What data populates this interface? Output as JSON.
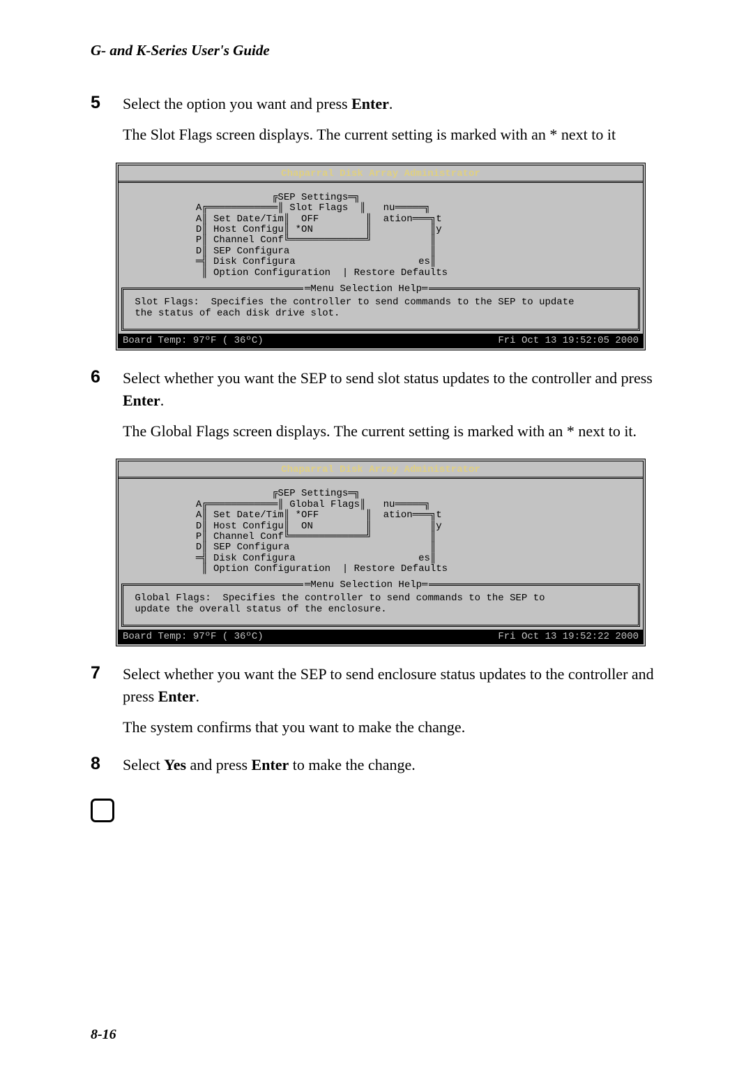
{
  "header": "G- and K-Series User's Guide",
  "page_num": "8-16",
  "steps": {
    "s5": {
      "num": "5",
      "line1a": "Select the option you want and press ",
      "line1b": "Enter",
      "line1c": ".",
      "line2": "The Slot Flags screen displays. The current setting is marked with an * next to it"
    },
    "s6": {
      "num": "6",
      "line1a": "Select whether you want the SEP to send slot status updates to the controller and press ",
      "line1b": "Enter",
      "line1c": ".",
      "line2": "The Global Flags screen displays. The current setting is marked with an * next to it."
    },
    "s7": {
      "num": "7",
      "line1a": "Select whether you want the SEP to send enclosure status updates to the controller and press ",
      "line1b": "Enter",
      "line1c": ".",
      "line2": "The system confirms that you want to make the change."
    },
    "s8": {
      "num": "8",
      "line1a": "Select ",
      "line1b": "Yes",
      "line1c": " and press ",
      "line1d": "Enter",
      "line1e": " to make the change."
    }
  },
  "term1": {
    "title": "Chaparral Disk Array Administrator",
    "body": "                         ╔SEP Settings═╗\n            A╔════════════║ Slot Flags  ║   nu═════╗\n            A║ Set Date/Tim║  OFF        ║  ation═══╗t\n            D║ Host Configu║ *ON         ║          ║y\n            P║ Channel Conf╚═════════════╝          ║\n            D║ SEP Configura                        ║\n            ═╣ Disk Configura                     es║\n             ║ Option Configuration  | Restore Defaults",
    "help_title": "═Menu Selection Help═",
    "help_body": " Slot Flags:  Specifies the controller to send commands to the SEP to update\n the status of each disk drive slot.",
    "status_left": "Board Temp:  97ºF ( 36ºC)",
    "status_right": "Fri Oct 13 19:52:05 2000"
  },
  "term2": {
    "title": "Chaparral Disk Array Administrator",
    "body": "                         ╔SEP Settings═╗\n            A╔════════════║ Global Flags║   nu═════╗\n            A║ Set Date/Tim║ *OFF        ║  ation═══╗t\n            D║ Host Configu║  ON         ║          ║y\n            P║ Channel Conf╚═════════════╝          ║\n            D║ SEP Configura                        ║\n            ═╣ Disk Configura                     es║\n             ║ Option Configuration  | Restore Defaults",
    "help_title": "═Menu Selection Help═",
    "help_body": " Global Flags:  Specifies the controller to send commands to the SEP to\n update the overall status of the enclosure.",
    "status_left": "Board Temp:  97ºF ( 36ºC)",
    "status_right": "Fri Oct 13 19:52:22 2000"
  }
}
